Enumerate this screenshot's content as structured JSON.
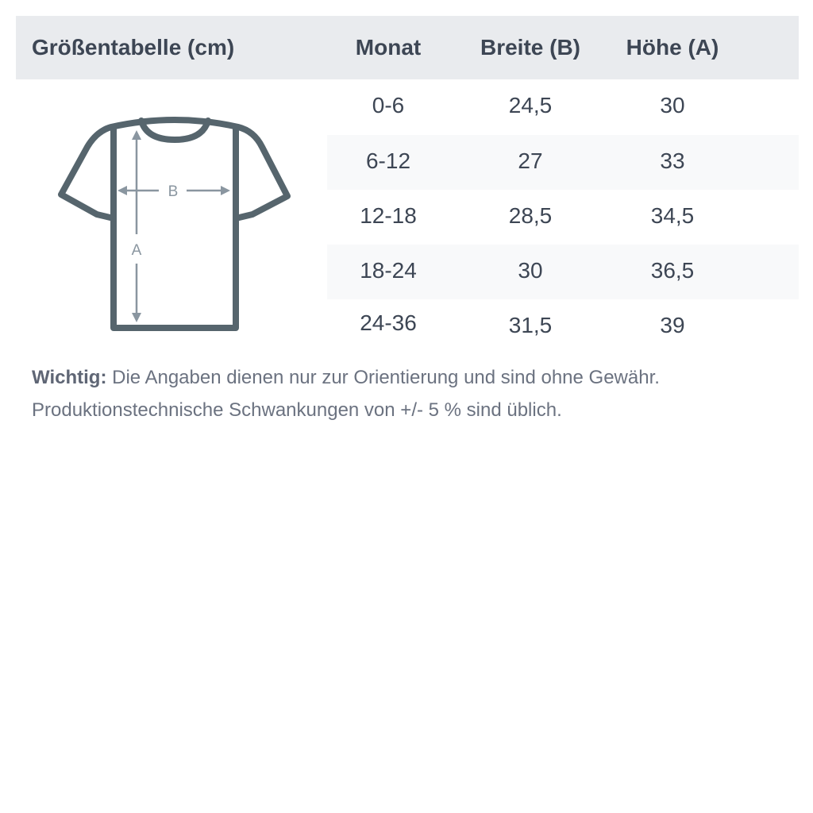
{
  "table": {
    "title": "Größentabelle (cm)",
    "columns": [
      "Monat",
      "Breite (B)",
      "Höhe (A)"
    ],
    "rows": [
      [
        "0-6",
        "24,5",
        "30"
      ],
      [
        "6-12",
        "27",
        "33"
      ],
      [
        "12-18",
        "28,5",
        "34,5"
      ],
      [
        "18-24",
        "30",
        "36,5"
      ],
      [
        "24-36",
        "31,5",
        "39"
      ]
    ]
  },
  "diagram": {
    "label_b": "B",
    "label_a": "A"
  },
  "note": {
    "label": "Wichtig:",
    "line1": " Die Angaben dienen nur zur Orientierung und sind ohne Gewähr.",
    "line2": "Produktionstechnische Schwankungen von +/- 5 % sind üblich."
  },
  "colors": {
    "header_bg": "#e9ebee",
    "text": "#3d4654",
    "shirt": "#56656d",
    "arrows": "#8a96a0",
    "stripe": "#f8f9fa"
  }
}
